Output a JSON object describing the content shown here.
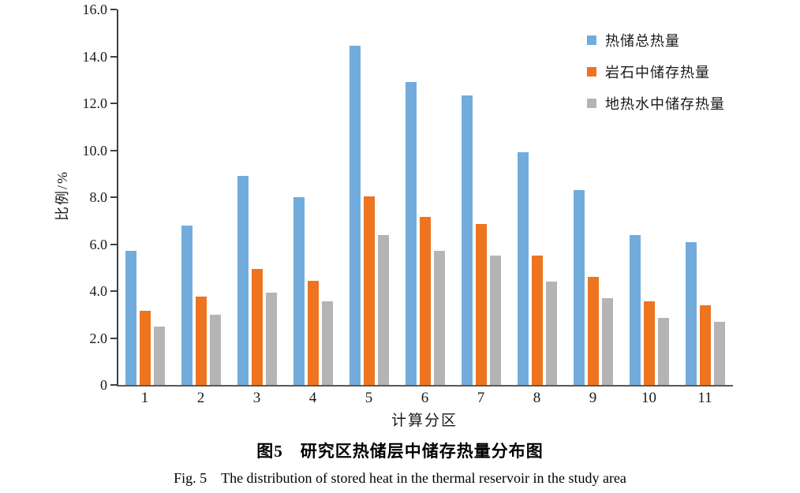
{
  "chart_data": {
    "type": "bar",
    "title": "图5 研究区热储层中储存热量分布图",
    "categories": [
      "1",
      "2",
      "3",
      "4",
      "5",
      "6",
      "7",
      "8",
      "9",
      "10",
      "11"
    ],
    "series": [
      {
        "name": "热储总热量",
        "color": "#72ACDC",
        "values": [
          5.7,
          6.8,
          8.9,
          8.0,
          14.45,
          12.9,
          12.35,
          9.9,
          8.3,
          6.4,
          6.1
        ]
      },
      {
        "name": "岩石中储存热量",
        "color": "#EE7420",
        "values": [
          3.15,
          3.75,
          4.95,
          4.45,
          8.05,
          7.15,
          6.85,
          5.5,
          4.6,
          3.55,
          3.4
        ]
      },
      {
        "name": "地热水中储存热量",
        "color": "#B4B4B4",
        "values": [
          2.5,
          3.0,
          3.95,
          3.55,
          6.4,
          5.7,
          5.5,
          4.4,
          3.7,
          2.85,
          2.7
        ]
      }
    ],
    "xlabel": "计算分区",
    "ylabel": "比例/%",
    "ylim": [
      0,
      16
    ],
    "yticks": [
      "16.0",
      "14.0",
      "12.0",
      "10.0",
      "8.0",
      "6.0",
      "4.0",
      "2.0",
      "0"
    ],
    "grid": false,
    "legend_position": "top-right"
  },
  "captions": {
    "zh": "图5　研究区热储层中储存热量分布图",
    "en": "Fig. 5　The distribution of stored heat in the thermal reservoir in the study area"
  },
  "colors": {
    "axis": "#3f3f3f",
    "baseline": "#595959",
    "text": "#1a1a1a"
  }
}
